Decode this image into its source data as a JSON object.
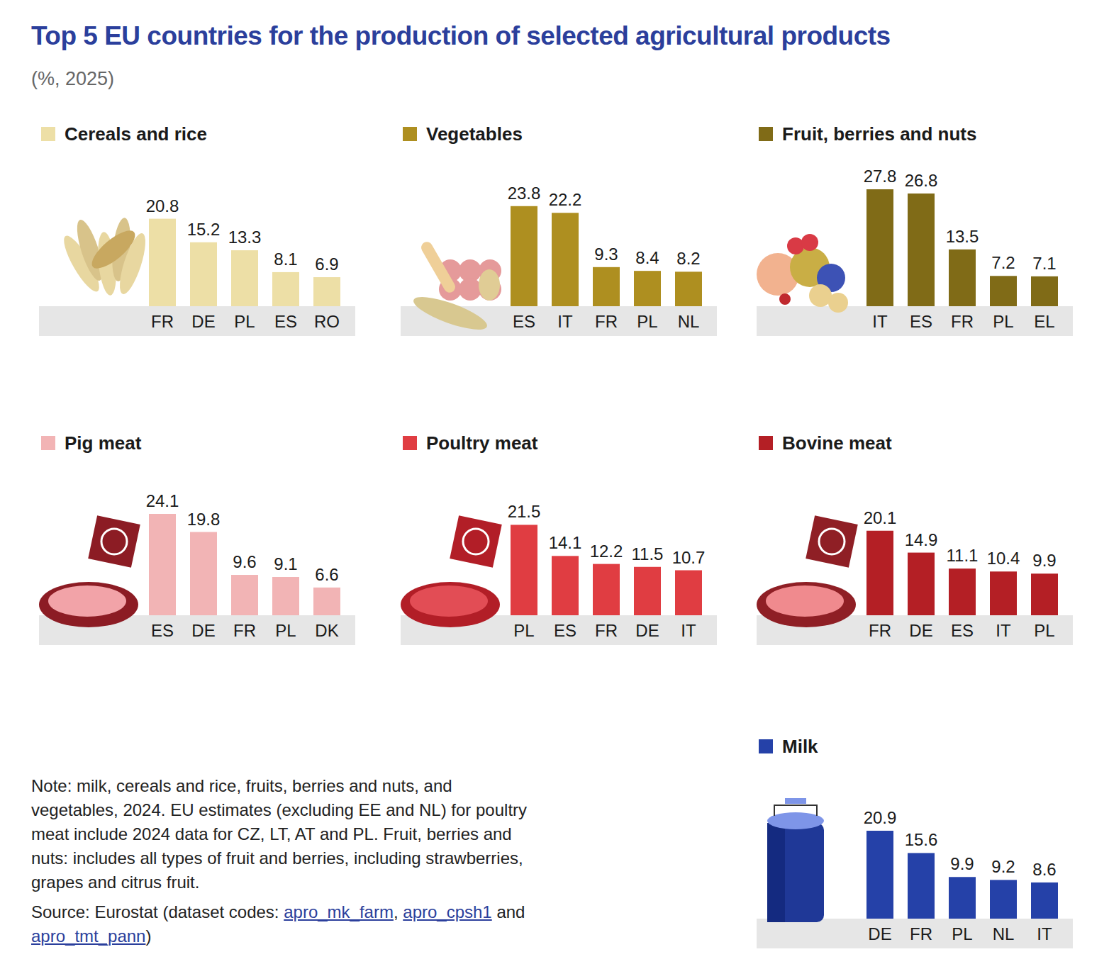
{
  "header": {
    "title": "Top 5 EU countries for the production of selected agricultural products",
    "subtitle": "(%, 2025)"
  },
  "chart_data": [
    {
      "type": "bar",
      "title": "Cereals and rice",
      "categories": [
        "FR",
        "DE",
        "PL",
        "ES",
        "RO"
      ],
      "values": [
        20.8,
        15.2,
        13.3,
        8.1,
        6.9
      ],
      "color": "#eddfa6",
      "ylim": [
        0,
        30
      ],
      "data_labels": true,
      "tick_labels": "x"
    },
    {
      "type": "bar",
      "title": "Vegetables",
      "categories": [
        "ES",
        "IT",
        "FR",
        "PL",
        "NL"
      ],
      "values": [
        23.8,
        22.2,
        9.3,
        8.4,
        8.2
      ],
      "color": "#ae8f20",
      "ylim": [
        0,
        30
      ],
      "data_labels": true,
      "tick_labels": "x"
    },
    {
      "type": "bar",
      "title": "Fruit, berries and nuts",
      "categories": [
        "IT",
        "ES",
        "FR",
        "PL",
        "EL"
      ],
      "values": [
        27.8,
        26.8,
        13.5,
        7.2,
        7.1
      ],
      "color": "#806b17",
      "ylim": [
        0,
        30
      ],
      "data_labels": true,
      "tick_labels": "x"
    },
    {
      "type": "bar",
      "title": "Pig meat",
      "categories": [
        "ES",
        "DE",
        "FR",
        "PL",
        "DK"
      ],
      "values": [
        24.1,
        19.8,
        9.6,
        9.1,
        6.6
      ],
      "color": "#f2b4b5",
      "ylim": [
        0,
        30
      ],
      "data_labels": true,
      "tick_labels": "x"
    },
    {
      "type": "bar",
      "title": "Poultry meat",
      "categories": [
        "PL",
        "ES",
        "FR",
        "DE",
        "IT"
      ],
      "values": [
        21.5,
        14.1,
        12.2,
        11.5,
        10.7
      ],
      "color": "#e03d42",
      "ylim": [
        0,
        30
      ],
      "data_labels": true,
      "tick_labels": "x"
    },
    {
      "type": "bar",
      "title": "Bovine meat",
      "categories": [
        "FR",
        "DE",
        "ES",
        "IT",
        "PL"
      ],
      "values": [
        20.1,
        14.9,
        11.1,
        10.4,
        9.9
      ],
      "color": "#b41f25",
      "ylim": [
        0,
        30
      ],
      "data_labels": true,
      "tick_labels": "x"
    },
    {
      "type": "bar",
      "title": "Milk",
      "categories": [
        "DE",
        "FR",
        "PL",
        "NL",
        "IT"
      ],
      "values": [
        20.9,
        15.6,
        9.9,
        9.2,
        8.6
      ],
      "color": "#2541a8",
      "ylim": [
        0,
        30
      ],
      "data_labels": true,
      "tick_labels": "x"
    }
  ],
  "footer": {
    "note": "Note: milk, cereals and rice, fruits, berries and nuts, and vegetables, 2024. EU estimates (excluding EE and NL) for poultry meat include 2024 data for CZ, LT, AT and PL. Fruit, berries and nuts: includes all types of fruit and berries, including strawberries, grapes and citrus fruit.",
    "source": [
      {
        "text": "Source: Eurostat (dataset codes: "
      },
      {
        "text": "apro_mk_farm",
        "link": true
      },
      {
        "text": ", "
      },
      {
        "text": "apro_cpsh1",
        "link": true
      },
      {
        "text": " and "
      },
      {
        "text": "apro_tmt_pann",
        "link": true
      },
      {
        "text": ")"
      }
    ]
  }
}
